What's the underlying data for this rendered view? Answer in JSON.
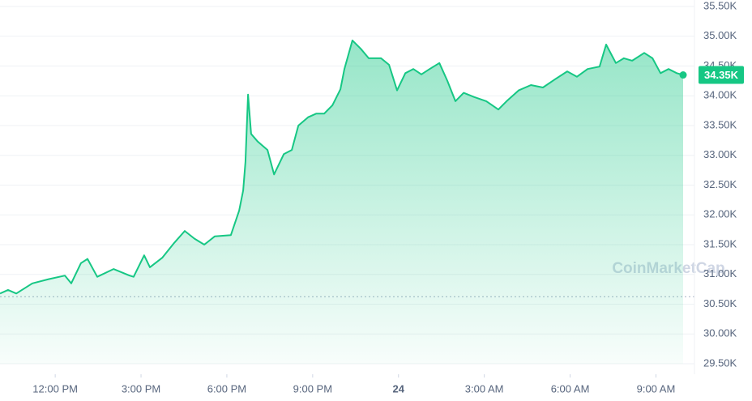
{
  "chart_data": {
    "type": "area",
    "x": [
      10.07,
      10.35,
      10.64,
      11.2,
      11.77,
      12.34,
      12.56,
      12.9,
      13.13,
      13.47,
      14.04,
      14.6,
      14.74,
      15.11,
      15.31,
      15.74,
      16.16,
      16.53,
      16.87,
      17.21,
      17.58,
      18.14,
      18.43,
      18.57,
      18.65,
      18.74,
      18.85,
      19.08,
      19.42,
      19.65,
      19.99,
      20.27,
      20.5,
      20.84,
      21.12,
      21.4,
      21.69,
      21.97,
      22.11,
      22.39,
      22.68,
      22.96,
      23.39,
      23.67,
      23.95,
      24.24,
      24.52,
      24.8,
      25.09,
      25.43,
      25.71,
      25.99,
      26.28,
      26.64,
      27.07,
      27.49,
      27.78,
      28.2,
      28.63,
      29.05,
      29.48,
      29.9,
      30.24,
      30.61,
      31.03,
      31.26,
      31.6,
      31.88,
      32.17,
      32.59,
      32.88,
      33.16,
      33.44,
      33.73,
      33.95
    ],
    "series": [
      {
        "color": "#16c784",
        "values": [
          30680,
          30740,
          30680,
          30850,
          30920,
          30980,
          30850,
          31190,
          31260,
          30960,
          31090,
          30980,
          30960,
          31320,
          31120,
          31280,
          31530,
          31730,
          31600,
          31500,
          31640,
          31660,
          32070,
          32410,
          32890,
          34020,
          33360,
          33230,
          33090,
          32680,
          33020,
          33090,
          33500,
          33640,
          33700,
          33700,
          33840,
          34110,
          34450,
          34930,
          34790,
          34630,
          34630,
          34520,
          34090,
          34380,
          34450,
          34360,
          34450,
          34550,
          34250,
          33910,
          34050,
          33980,
          33910,
          33770,
          33910,
          34090,
          34180,
          34140,
          34280,
          34410,
          34320,
          34450,
          34490,
          34860,
          34550,
          34630,
          34590,
          34720,
          34630,
          34380,
          34450,
          34380,
          34350
        ]
      }
    ],
    "last_price_label": "34.35K",
    "watermark": "CoinMarketCap",
    "xlim": [
      10.07,
      34.29
    ],
    "xticks": [
      {
        "value": 12,
        "label": "12:00 PM"
      },
      {
        "value": 15,
        "label": "3:00 PM"
      },
      {
        "value": 18,
        "label": "6:00 PM"
      },
      {
        "value": 21,
        "label": "9:00 PM"
      },
      24,
      {
        "value": 27,
        "label": "3:00 AM"
      },
      {
        "value": 30,
        "label": "6:00 AM"
      },
      {
        "value": 33,
        "label": "9:00 AM"
      }
    ],
    "ylim": [
      29500,
      35500
    ],
    "yticks": [
      {
        "value": 35500,
        "label": "35.50K"
      },
      {
        "value": 35000,
        "label": "35.00K"
      },
      {
        "value": 34500,
        "label": "34.50K"
      },
      {
        "value": 34000,
        "label": "34.00K"
      },
      {
        "value": 33500,
        "label": "33.50K"
      },
      {
        "value": 33000,
        "label": "33.00K"
      },
      {
        "value": 32500,
        "label": "32.50K"
      },
      {
        "value": 32000,
        "label": "32.00K"
      },
      {
        "value": 31500,
        "label": "31.50K"
      },
      {
        "value": 31000,
        "label": "31.00K"
      },
      {
        "value": 30500,
        "label": "30.50K"
      },
      {
        "value": 30000,
        "label": "30.00K"
      },
      {
        "value": 29500,
        "label": "29.50K"
      }
    ],
    "grid": true
  }
}
